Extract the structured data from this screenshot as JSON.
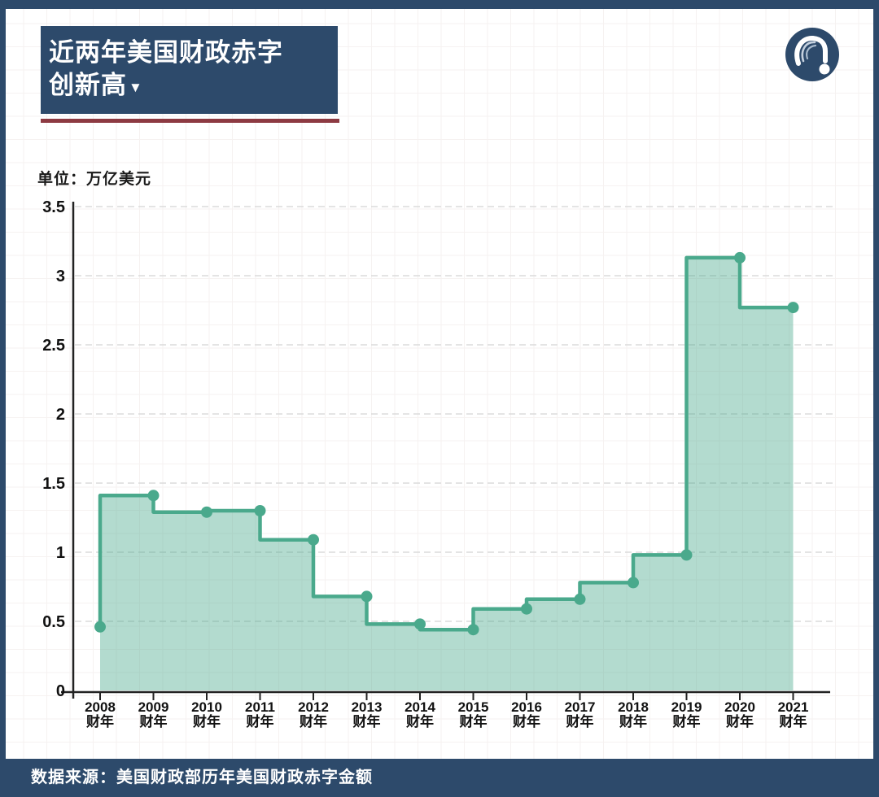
{
  "frame": {
    "color": "#2d4a6b"
  },
  "header": {
    "title_line1": "近两年美国财政赤字",
    "title_line2": "创新高",
    "title_marker": "▼",
    "underline_color": "#8d3a42",
    "logo_icon": "question-exclamation-badge"
  },
  "chart_data": {
    "type": "area",
    "step_style": "step-before",
    "title": "近两年美国财政赤字创新高",
    "unit_label": "单位：万亿美元",
    "ylabel": "万亿美元",
    "categories": [
      "2008",
      "2009",
      "2010",
      "2011",
      "2012",
      "2013",
      "2014",
      "2015",
      "2016",
      "2017",
      "2018",
      "2019",
      "2020",
      "2021"
    ],
    "category_suffix": "财年",
    "values": [
      0.46,
      1.41,
      1.29,
      1.3,
      1.09,
      0.68,
      0.48,
      0.44,
      0.59,
      0.66,
      0.78,
      0.98,
      3.13,
      2.77
    ],
    "ylim": [
      0,
      3.5
    ],
    "yticks": [
      3.5,
      3,
      2.5,
      2,
      1.5,
      1,
      0.5,
      0
    ],
    "grid": "dashed-horizontal",
    "legend": "none",
    "markers": "dots-at-each-year",
    "colors": {
      "line": "#4aa98c",
      "fill": "rgba(74,169,140,0.42)",
      "axis": "#222222",
      "gridline": "#dbdbdb"
    }
  },
  "footer": {
    "source": "数据来源：美国财政部历年美国财政赤字金额"
  }
}
